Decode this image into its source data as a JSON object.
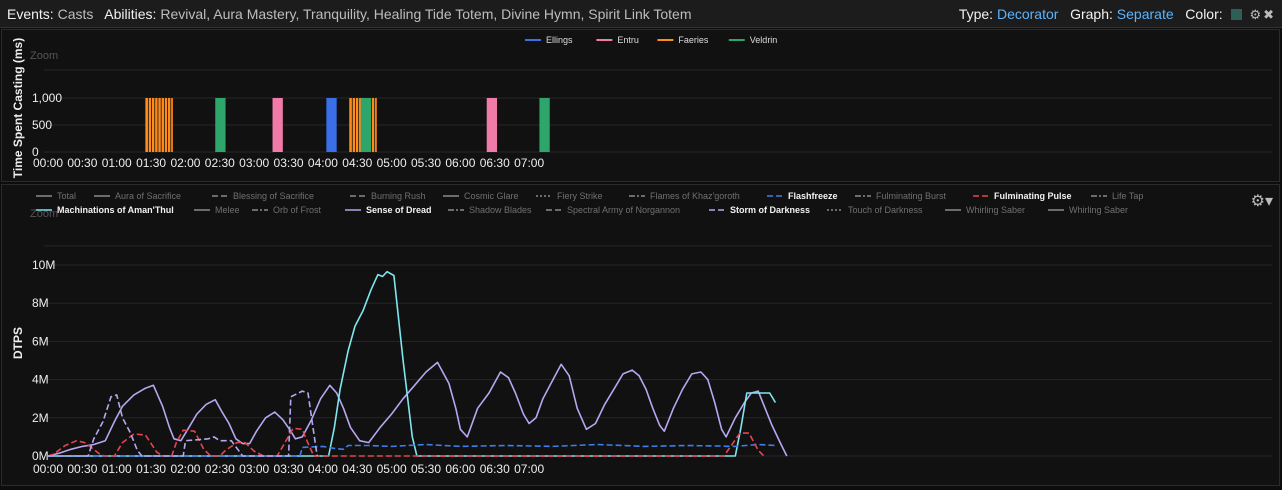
{
  "topbar": {
    "events_label": "Events:",
    "events_value": "Casts",
    "abilities_label": "Abilities:",
    "abilities_value": "Revival, Aura Mastery, Tranquility, Healing Tide Totem, Divine Hymn, Spirit Link Totem",
    "type_label": "Type:",
    "type_value": "Decorator",
    "graph_label": "Graph:",
    "graph_value": "Separate",
    "color_label": "Color:",
    "color_swatch": "#2f5e57",
    "icons": [
      "gear-icon",
      "close-icon"
    ]
  },
  "chart_data": [
    {
      "type": "bar",
      "title": "",
      "ylabel": "Time Spent Casting (ms)",
      "zoom_label": "Zoom",
      "ylim": [
        0,
        1000
      ],
      "yticks": [
        "0",
        "500",
        "1,000"
      ],
      "xticks": [
        "00:00",
        "00:30",
        "01:00",
        "01:30",
        "02:00",
        "02:30",
        "03:00",
        "03:30",
        "04:00",
        "04:30",
        "05:00",
        "05:30",
        "06:00",
        "06:30",
        "07:00"
      ],
      "legend": [
        {
          "name": "Ellings",
          "color": "#3a6fe8"
        },
        {
          "name": "Entru",
          "color": "#f07aa8"
        },
        {
          "name": "Faeries",
          "color": "#ff8c1a"
        },
        {
          "name": "Veldrin",
          "color": "#2ea56b"
        }
      ],
      "bars": [
        {
          "t": 85,
          "w": 8,
          "value": 1000,
          "color": "#ff8c1a",
          "striped": true
        },
        {
          "t": 146,
          "w": 3,
          "value": 1000,
          "color": "#2ea56b"
        },
        {
          "t": 196,
          "w": 3,
          "value": 1000,
          "color": "#f07aa8"
        },
        {
          "t": 243,
          "w": 3,
          "value": 1000,
          "color": "#3a6fe8"
        },
        {
          "t": 263,
          "w": 8,
          "value": 1000,
          "color": "#ff8c1a",
          "striped": true
        },
        {
          "t": 273,
          "w": 3,
          "value": 1000,
          "color": "#2ea56b"
        },
        {
          "t": 383,
          "w": 3,
          "value": 1000,
          "color": "#f07aa8"
        },
        {
          "t": 429,
          "w": 3,
          "value": 1000,
          "color": "#2ea56b"
        }
      ]
    },
    {
      "type": "line",
      "title": "",
      "ylabel": "DTPS",
      "zoom_label": "Zoom",
      "ylim": [
        0,
        11000000
      ],
      "yticks": [
        {
          "v": 0,
          "label": "0M"
        },
        {
          "v": 2000000,
          "label": "2M"
        },
        {
          "v": 4000000,
          "label": "4M"
        },
        {
          "v": 6000000,
          "label": "6M"
        },
        {
          "v": 8000000,
          "label": "8M"
        },
        {
          "v": 10000000,
          "label": "10M"
        }
      ],
      "xticks": [
        "00:00",
        "00:30",
        "01:00",
        "01:30",
        "02:00",
        "02:30",
        "03:00",
        "03:30",
        "04:00",
        "04:30",
        "05:00",
        "05:30",
        "06:00",
        "06:30",
        "07:00"
      ],
      "legend": [
        {
          "name": "Total",
          "color": "#8a8a8a",
          "dash": "",
          "active": false
        },
        {
          "name": "Aura of Sacrifice",
          "color": "#8a8a8a",
          "dash": "",
          "active": false
        },
        {
          "name": "Blessing of Sacrifice",
          "color": "#8a8a8a",
          "dash": "6,3",
          "active": false
        },
        {
          "name": "Burning Rush",
          "color": "#8a8a8a",
          "dash": "6,3",
          "active": false
        },
        {
          "name": "Cosmic Glare",
          "color": "#8a8a8a",
          "dash": "",
          "active": false
        },
        {
          "name": "Fiery Strike",
          "color": "#8a8a8a",
          "dash": "2,2",
          "active": false
        },
        {
          "name": "Flames of Khaz'goroth",
          "color": "#8a8a8a",
          "dash": "6,2,2,2",
          "active": false
        },
        {
          "name": "Flashfreeze",
          "color": "#3f7ee8",
          "dash": "6,3",
          "active": true
        },
        {
          "name": "Fulminating Burst",
          "color": "#8a8a8a",
          "dash": "6,2,2,2",
          "active": false
        },
        {
          "name": "Fulminating Pulse",
          "color": "#e5454e",
          "dash": "6,3",
          "active": true
        },
        {
          "name": "Life Tap",
          "color": "#8a8a8a",
          "dash": "6,2,2,2",
          "active": false
        },
        {
          "name": "Machinations of Aman'Thul",
          "color": "#7fe6f0",
          "dash": "",
          "active": true
        },
        {
          "name": "Melee",
          "color": "#8a8a8a",
          "dash": "",
          "active": false
        },
        {
          "name": "Orb of Frost",
          "color": "#8a8a8a",
          "dash": "6,2,2,2",
          "active": false
        },
        {
          "name": "Sense of Dread",
          "color": "#b7a6f0",
          "dash": "",
          "active": true
        },
        {
          "name": "Shadow Blades",
          "color": "#8a8a8a",
          "dash": "6,2,2,2",
          "active": false
        },
        {
          "name": "Spectral Army of Norgannon",
          "color": "#8a8a8a",
          "dash": "6,3",
          "active": false
        },
        {
          "name": "Storm of Darkness",
          "color": "#b7a6f0",
          "dash": "6,3",
          "active": true
        },
        {
          "name": "Touch of Darkness",
          "color": "#8a8a8a",
          "dash": "2,2",
          "active": false
        },
        {
          "name": "Whirling Saber",
          "color": "#8a8a8a",
          "dash": "",
          "active": false
        },
        {
          "name": "Whirling Saber",
          "color": "#8a8a8a",
          "dash": "",
          "active": false
        }
      ],
      "series": [
        {
          "name": "Sense of Dread",
          "color": "#b7a6f0",
          "dash": "",
          "points": [
            [
              0,
              0
            ],
            [
              10,
              150000
            ],
            [
              20,
              350000
            ],
            [
              30,
              500000
            ],
            [
              40,
              600000
            ],
            [
              50,
              800000
            ],
            [
              58,
              1800000
            ],
            [
              65,
              2600000
            ],
            [
              75,
              3200000
            ],
            [
              85,
              3550000
            ],
            [
              92,
              3700000
            ],
            [
              100,
              2600000
            ],
            [
              106,
              1500000
            ],
            [
              110,
              900000
            ],
            [
              116,
              800000
            ],
            [
              122,
              1400000
            ],
            [
              130,
              2200000
            ],
            [
              138,
              2700000
            ],
            [
              146,
              2950000
            ],
            [
              152,
              2300000
            ],
            [
              158,
              1700000
            ],
            [
              164,
              900000
            ],
            [
              170,
              650000
            ],
            [
              176,
              650000
            ],
            [
              182,
              1300000
            ],
            [
              190,
              2000000
            ],
            [
              198,
              2300000
            ],
            [
              205,
              1900000
            ],
            [
              212,
              1300000
            ],
            [
              216,
              900000
            ],
            [
              222,
              1000000
            ],
            [
              230,
              1900000
            ],
            [
              238,
              3000000
            ],
            [
              246,
              3700000
            ],
            [
              252,
              3300000
            ],
            [
              258,
              2500000
            ],
            [
              264,
              1500000
            ],
            [
              272,
              800000
            ],
            [
              280,
              700000
            ],
            [
              290,
              1500000
            ],
            [
              300,
              2200000
            ],
            [
              310,
              3000000
            ],
            [
              320,
              3700000
            ],
            [
              330,
              4400000
            ],
            [
              340,
              4900000
            ],
            [
              350,
              3800000
            ],
            [
              356,
              2500000
            ],
            [
              360,
              1400000
            ],
            [
              366,
              1000000
            ],
            [
              375,
              2500000
            ],
            [
              385,
              3300000
            ],
            [
              395,
              4400000
            ],
            [
              402,
              4100000
            ],
            [
              408,
              3300000
            ],
            [
              415,
              2200000
            ],
            [
              420,
              1700000
            ],
            [
              426,
              2000000
            ],
            [
              432,
              3000000
            ],
            [
              440,
              3900000
            ],
            [
              448,
              4800000
            ],
            [
              455,
              4200000
            ],
            [
              462,
              2500000
            ],
            [
              470,
              1400000
            ],
            [
              478,
              1700000
            ],
            [
              486,
              2700000
            ],
            [
              494,
              3500000
            ],
            [
              502,
              4300000
            ],
            [
              510,
              4500000
            ],
            [
              516,
              4200000
            ],
            [
              522,
              3500000
            ],
            [
              528,
              2500000
            ],
            [
              534,
              1600000
            ],
            [
              538,
              1300000
            ],
            [
              546,
              2500000
            ],
            [
              554,
              3500000
            ],
            [
              562,
              4300000
            ],
            [
              570,
              4400000
            ],
            [
              576,
              4000000
            ],
            [
              582,
              2800000
            ],
            [
              588,
              1400000
            ],
            [
              592,
              1000000
            ],
            [
              600,
              2000000
            ],
            [
              608,
              2800000
            ],
            [
              614,
              3300000
            ],
            [
              620,
              3400000
            ],
            [
              626,
              2500000
            ],
            [
              632,
              1600000
            ],
            [
              640,
              600000
            ],
            [
              645,
              0
            ]
          ]
        },
        {
          "name": "Machinations of Aman'Thul",
          "color": "#7fe6f0",
          "dash": "",
          "points": [
            [
              0,
              0
            ],
            [
              245,
              0
            ],
            [
              250,
              1500000
            ],
            [
              255,
              3500000
            ],
            [
              262,
              5500000
            ],
            [
              268,
              6800000
            ],
            [
              275,
              7600000
            ],
            [
              282,
              8700000
            ],
            [
              288,
              9500000
            ],
            [
              292,
              9400000
            ],
            [
              296,
              9650000
            ],
            [
              302,
              9450000
            ],
            [
              310,
              5000000
            ],
            [
              318,
              1000000
            ],
            [
              322,
              0
            ],
            [
              600,
              0
            ],
            [
              605,
              1500000
            ],
            [
              610,
              3300000
            ],
            [
              630,
              3300000
            ],
            [
              635,
              2800000
            ]
          ]
        },
        {
          "name": "Flashfreeze",
          "color": "#3f7ee8",
          "dash": "6,3",
          "points": [
            [
              0,
              0
            ],
            [
              220,
              0
            ],
            [
              222,
              450000
            ],
            [
              240,
              500000
            ],
            [
              250,
              400000
            ],
            [
              258,
              350000
            ],
            [
              262,
              550000
            ],
            [
              280,
              550000
            ],
            [
              300,
              500000
            ],
            [
              330,
              600000
            ],
            [
              360,
              500000
            ],
            [
              400,
              550000
            ],
            [
              440,
              500000
            ],
            [
              480,
              600000
            ],
            [
              520,
              500000
            ],
            [
              560,
              550000
            ],
            [
              600,
              500000
            ],
            [
              620,
              600000
            ],
            [
              635,
              550000
            ]
          ]
        },
        {
          "name": "Fulminating Pulse",
          "color": "#e5454e",
          "dash": "6,3",
          "points": [
            [
              0,
              0
            ],
            [
              5,
              100000
            ],
            [
              15,
              550000
            ],
            [
              25,
              800000
            ],
            [
              32,
              700000
            ],
            [
              40,
              350000
            ],
            [
              46,
              50000
            ],
            [
              50,
              0
            ],
            [
              58,
              0
            ],
            [
              65,
              700000
            ],
            [
              75,
              1150000
            ],
            [
              85,
              1100000
            ],
            [
              95,
              200000
            ],
            [
              100,
              0
            ],
            [
              108,
              0
            ],
            [
              112,
              700000
            ],
            [
              118,
              1350000
            ],
            [
              128,
              1300000
            ],
            [
              136,
              350000
            ],
            [
              142,
              0
            ],
            [
              150,
              0
            ],
            [
              155,
              300000
            ],
            [
              165,
              700000
            ],
            [
              172,
              700000
            ],
            [
              180,
              250000
            ],
            [
              188,
              0
            ],
            [
              200,
              0
            ],
            [
              205,
              500000
            ],
            [
              214,
              1450000
            ],
            [
              222,
              1400000
            ],
            [
              226,
              800000
            ],
            [
              232,
              0
            ],
            [
              590,
              0
            ],
            [
              596,
              500000
            ],
            [
              604,
              1200000
            ],
            [
              612,
              1200000
            ],
            [
              620,
              300000
            ],
            [
              625,
              0
            ]
          ]
        },
        {
          "name": "Storm of Darkness",
          "color": "#b7a6f0",
          "dash": "6,3",
          "points": [
            [
              0,
              0
            ],
            [
              35,
              0
            ],
            [
              40,
              900000
            ],
            [
              48,
              1800000
            ],
            [
              55,
              3100000
            ],
            [
              60,
              3200000
            ],
            [
              65,
              2000000
            ],
            [
              72,
              1200000
            ],
            [
              78,
              300000
            ],
            [
              82,
              0
            ],
            [
              118,
              0
            ],
            [
              120,
              800000
            ],
            [
              140,
              900000
            ],
            [
              145,
              1000000
            ],
            [
              150,
              800000
            ],
            [
              160,
              800000
            ],
            [
              170,
              0
            ],
            [
              210,
              0
            ],
            [
              212,
              3100000
            ],
            [
              222,
              3400000
            ],
            [
              227,
              3300000
            ],
            [
              232,
              1200000
            ],
            [
              235,
              0
            ]
          ]
        }
      ]
    }
  ]
}
